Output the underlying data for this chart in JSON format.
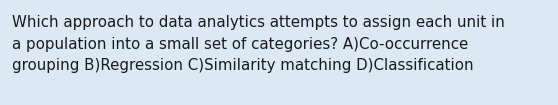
{
  "text": "Which approach to data analytics attempts to assign each unit in\na population into a small set of categories? A)Co-occurrence\ngrouping B)Regression C)Similarity matching D)Classification",
  "background_color": "#dce9f5",
  "text_color": "#1a1a1a",
  "font_size": 10.8,
  "fig_width": 5.58,
  "fig_height": 1.05,
  "dpi": 100
}
